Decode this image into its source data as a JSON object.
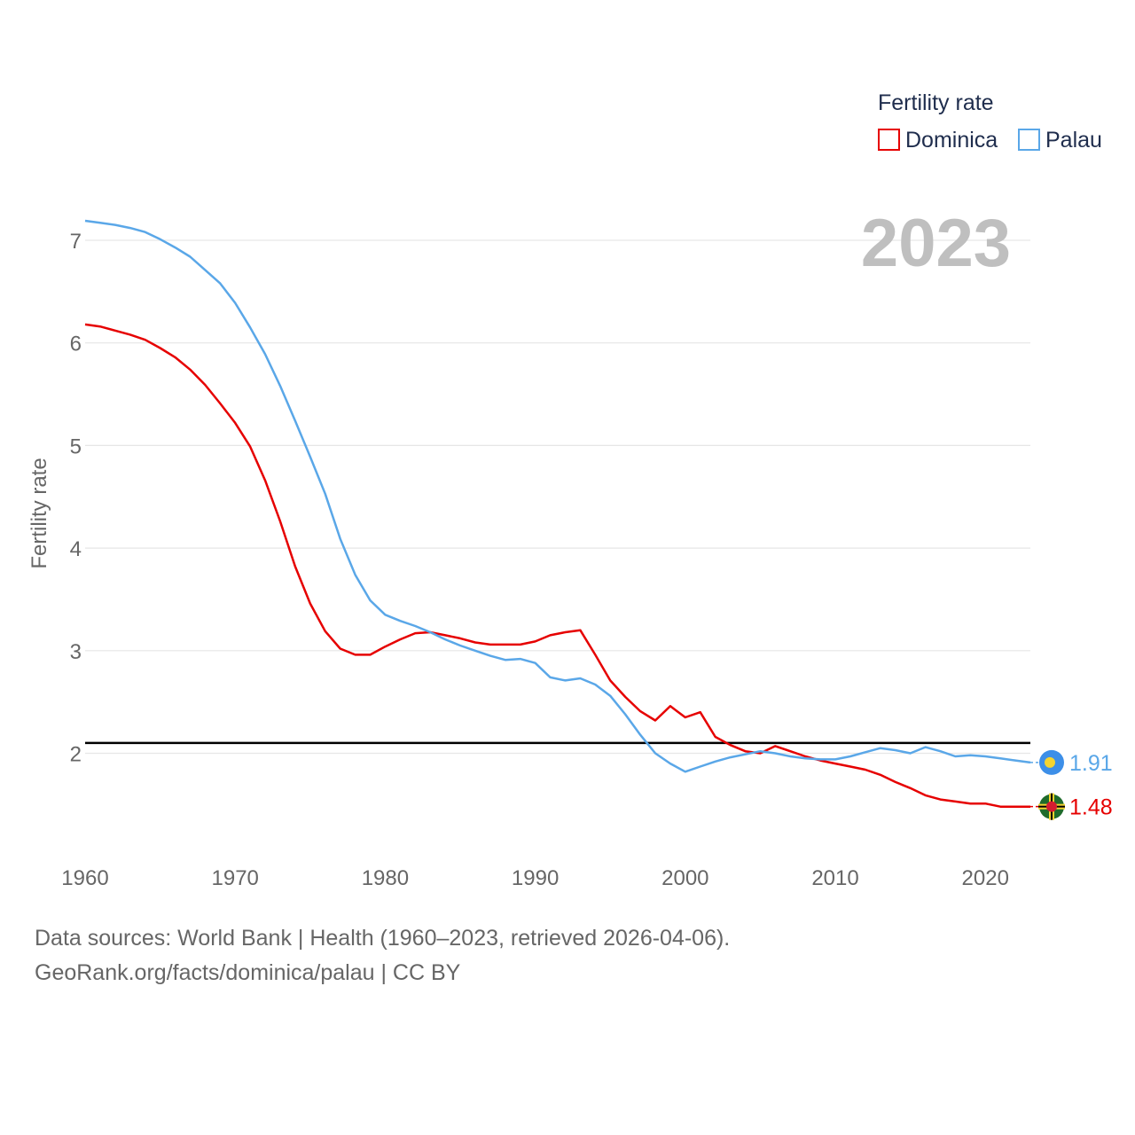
{
  "chart_data": {
    "type": "line",
    "title": "",
    "year_label": "2023",
    "xlabel": "",
    "ylabel": "Fertility rate",
    "xlim": [
      1960,
      2023
    ],
    "ylim": [
      1.0,
      7.5
    ],
    "xticks": [
      1960,
      1970,
      1980,
      1990,
      2000,
      2010,
      2020
    ],
    "yticks": [
      2,
      3,
      4,
      5,
      6,
      7
    ],
    "reference_line": 2.1,
    "legend": {
      "title": "Fertility rate",
      "position": "top-right"
    },
    "x": [
      1960,
      1961,
      1962,
      1963,
      1964,
      1965,
      1966,
      1967,
      1968,
      1969,
      1970,
      1971,
      1972,
      1973,
      1974,
      1975,
      1976,
      1977,
      1978,
      1979,
      1980,
      1981,
      1982,
      1983,
      1984,
      1985,
      1986,
      1987,
      1988,
      1989,
      1990,
      1991,
      1992,
      1993,
      1994,
      1995,
      1996,
      1997,
      1998,
      1999,
      2000,
      2001,
      2002,
      2003,
      2004,
      2005,
      2006,
      2007,
      2008,
      2009,
      2010,
      2011,
      2012,
      2013,
      2014,
      2015,
      2016,
      2017,
      2018,
      2019,
      2020,
      2021,
      2022,
      2023
    ],
    "series": [
      {
        "name": "Dominica",
        "color": "#e60000",
        "end_label": "1.48",
        "values": [
          6.18,
          6.16,
          6.12,
          6.08,
          6.03,
          5.95,
          5.86,
          5.74,
          5.59,
          5.41,
          5.22,
          4.99,
          4.66,
          4.26,
          3.82,
          3.46,
          3.19,
          3.02,
          2.96,
          2.96,
          3.04,
          3.11,
          3.17,
          3.18,
          3.15,
          3.12,
          3.08,
          3.06,
          3.06,
          3.06,
          3.09,
          3.15,
          3.18,
          3.2,
          2.96,
          2.71,
          2.55,
          2.41,
          2.32,
          2.46,
          2.35,
          2.4,
          2.16,
          2.08,
          2.02,
          2.0,
          2.07,
          2.02,
          1.97,
          1.93,
          1.9,
          1.87,
          1.84,
          1.79,
          1.72,
          1.66,
          1.59,
          1.55,
          1.53,
          1.51,
          1.51,
          1.48,
          1.48,
          1.48
        ]
      },
      {
        "name": "Palau",
        "color": "#5aa7e8",
        "end_label": "1.91",
        "values": [
          7.19,
          7.17,
          7.15,
          7.12,
          7.08,
          7.01,
          6.93,
          6.84,
          6.71,
          6.58,
          6.39,
          6.15,
          5.89,
          5.58,
          5.24,
          4.89,
          4.53,
          4.09,
          3.74,
          3.49,
          3.35,
          3.29,
          3.24,
          3.18,
          3.11,
          3.05,
          3.0,
          2.95,
          2.91,
          2.92,
          2.88,
          2.74,
          2.71,
          2.73,
          2.67,
          2.56,
          2.38,
          2.18,
          2.0,
          1.9,
          1.82,
          1.87,
          1.92,
          1.96,
          1.99,
          2.02,
          2.0,
          1.97,
          1.95,
          1.94,
          1.94,
          1.97,
          2.01,
          2.05,
          2.03,
          2.0,
          2.06,
          2.02,
          1.97,
          1.98,
          1.97,
          1.95,
          1.93,
          1.91
        ]
      }
    ]
  },
  "footer": {
    "line1": "Data sources: World Bank | Health (1960–2023, retrieved 2026-04-06).",
    "line2": "GeoRank.org/facts/dominica/palau | CC BY"
  }
}
